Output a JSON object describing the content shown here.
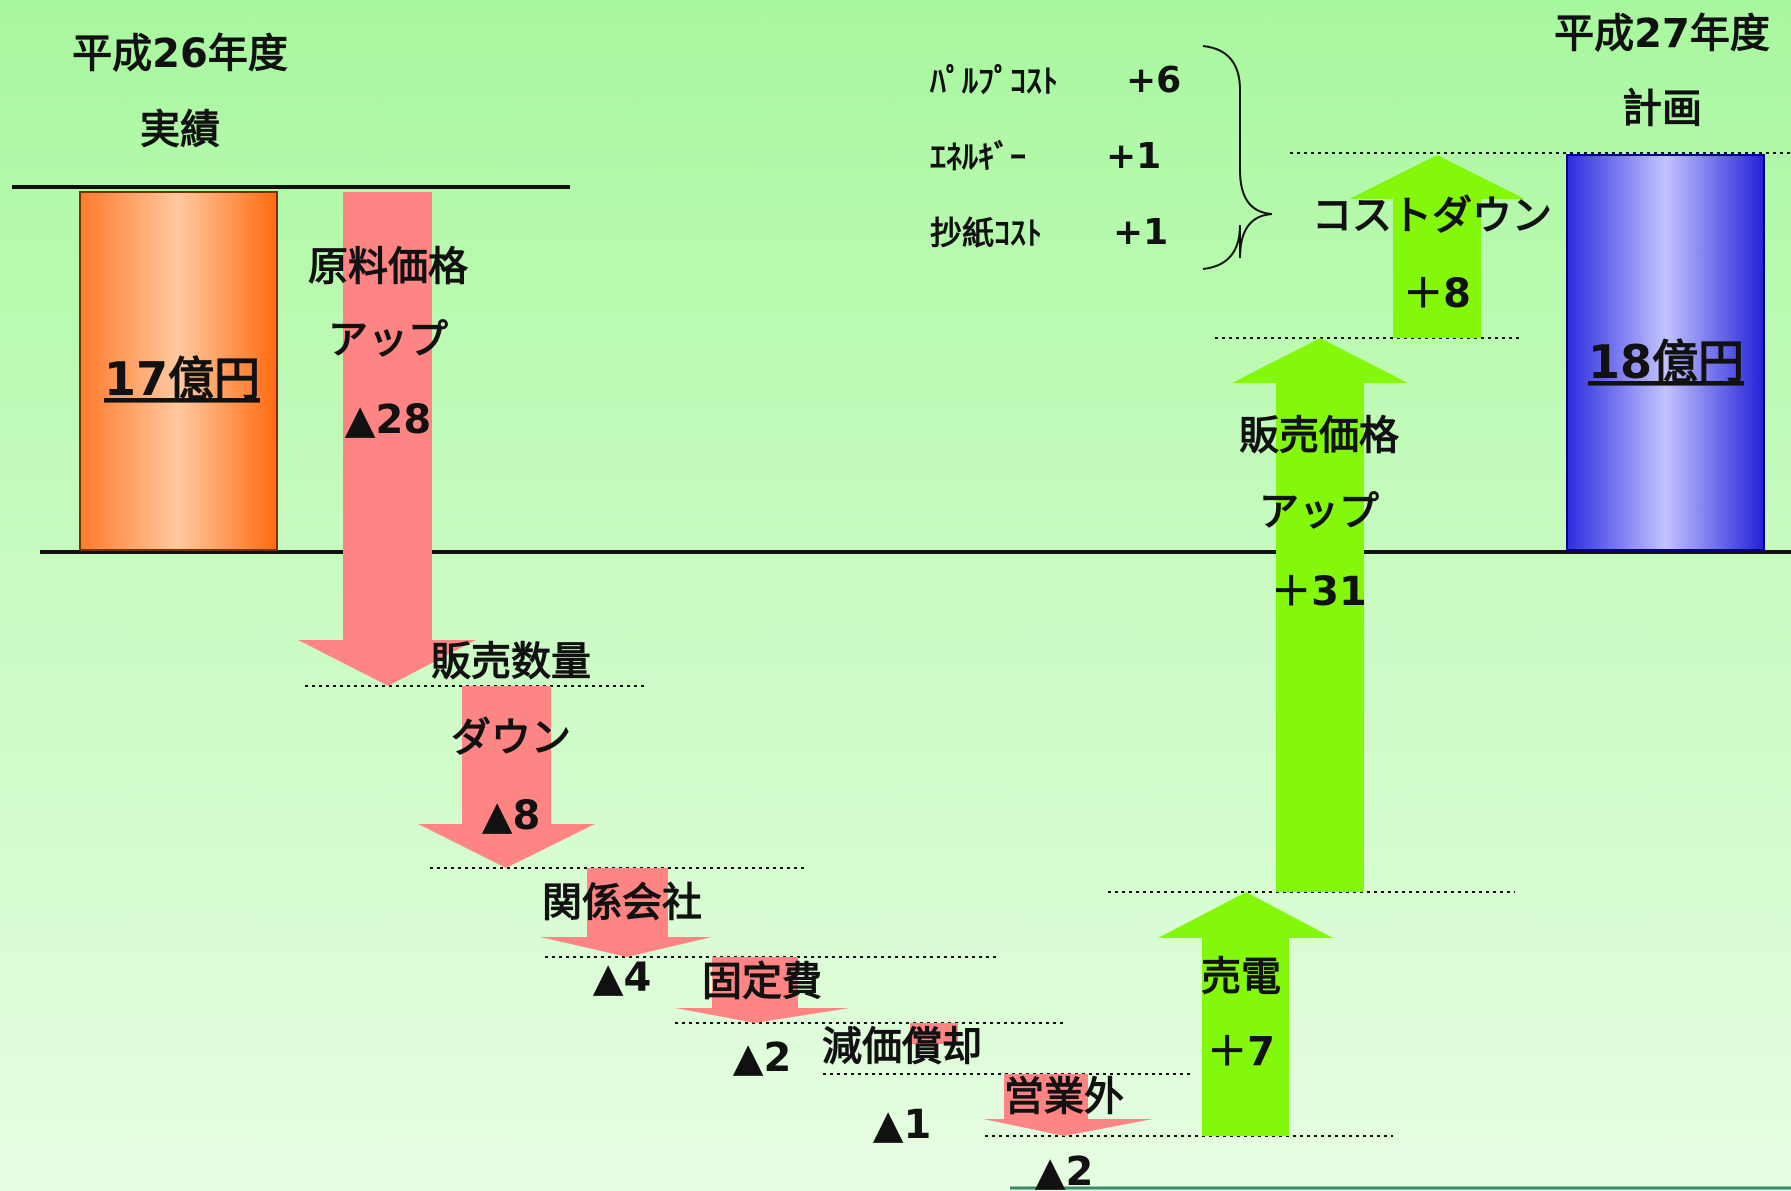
{
  "chart_data": {
    "type": "waterfall",
    "unit": "億円",
    "start": {
      "period": "平成26年度",
      "sub": "実績",
      "value": 17,
      "label": "17億円",
      "color": "#ff7a2a"
    },
    "end": {
      "period": "平成27年度",
      "sub": "計画",
      "value": 18,
      "label": "18億円",
      "color": "#3a3ae6"
    },
    "steps": [
      {
        "name": "原料価格アップ",
        "lines": [
          "原料価格",
          "アップ"
        ],
        "value": -28,
        "value_label": "▲28",
        "color": "#ff8585"
      },
      {
        "name": "販売数量ダウン",
        "lines": [
          "販売数量",
          "ダウン"
        ],
        "value": -8,
        "value_label": "▲8",
        "color": "#ff8585"
      },
      {
        "name": "関係会社",
        "lines": [
          "関係会社"
        ],
        "value": -4,
        "value_label": "▲4",
        "color": "#ff8585"
      },
      {
        "name": "固定費",
        "lines": [
          "固定費"
        ],
        "value": -2,
        "value_label": "▲2",
        "color": "#ff8585"
      },
      {
        "name": "減価償却",
        "lines": [
          "減価償却"
        ],
        "value": -1,
        "value_label": "▲1",
        "color": "#ff8585"
      },
      {
        "name": "営業外",
        "lines": [
          "営業外"
        ],
        "value": -2,
        "value_label": "▲2",
        "color": "#ff8585"
      },
      {
        "name": "売電",
        "lines": [
          "売電"
        ],
        "value": 7,
        "value_label": "＋7",
        "color": "#84f80a"
      },
      {
        "name": "販売価格アップ",
        "lines": [
          "販売価格",
          "アップ"
        ],
        "value": 31,
        "value_label": "＋31",
        "color": "#84f80a"
      },
      {
        "name": "コストダウン",
        "lines": [
          "コストダウン"
        ],
        "value": 8,
        "value_label": "＋8",
        "color": "#84f80a"
      }
    ],
    "breakdown": [
      {
        "label": "ﾊﾟﾙﾌﾟｺｽﾄ",
        "value": "+6"
      },
      {
        "label": "ｴﾈﾙｷﾞｰ",
        "value": "+1"
      },
      {
        "label": "抄紙ｺｽﾄ",
        "value": "+1"
      }
    ]
  }
}
